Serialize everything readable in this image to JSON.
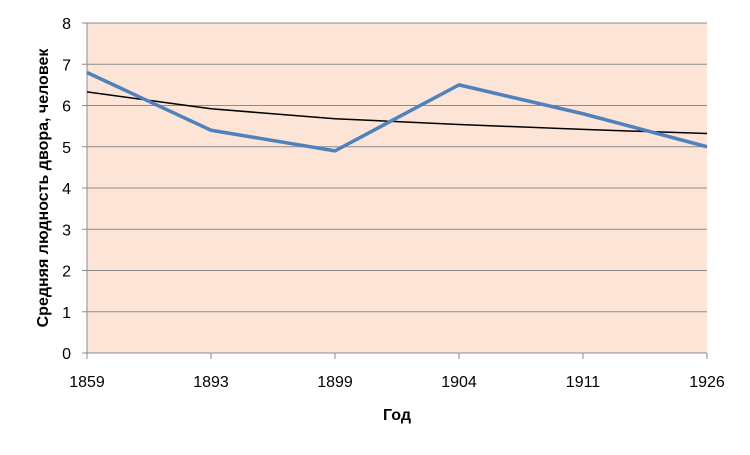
{
  "chart_data": {
    "type": "line",
    "x_label": "Год",
    "y_label": "Средняя людность двора, человек",
    "categories": [
      "1859",
      "1893",
      "1899",
      "1904",
      "1911",
      "1926"
    ],
    "series": [
      {
        "color": "#4f81bd",
        "values": [
          6.8,
          5.4,
          4.9,
          6.5,
          5.8,
          5.0
        ]
      },
      {
        "color": "#000000",
        "values": [
          6.33,
          5.92,
          5.68,
          5.54,
          5.42,
          5.32
        ]
      }
    ],
    "ylim": [
      0,
      8
    ],
    "yticks": [
      0,
      1,
      2,
      3,
      4,
      5,
      6,
      7,
      8
    ],
    "grid": true,
    "background": "#fce4d6"
  }
}
